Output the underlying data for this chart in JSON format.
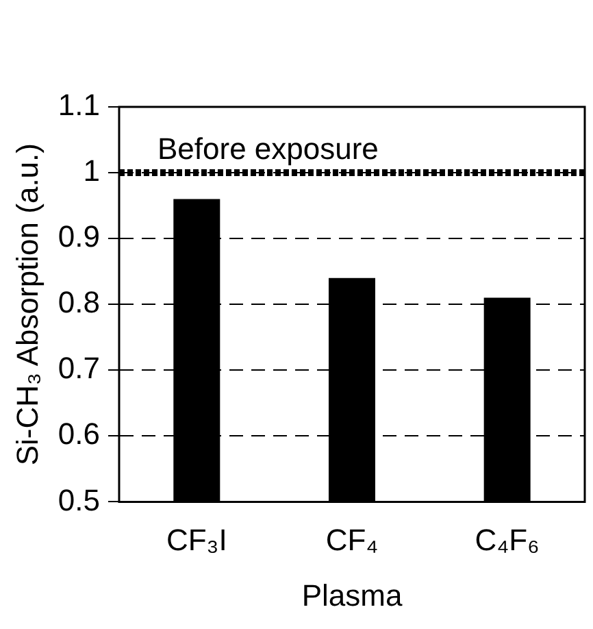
{
  "chart_data": {
    "type": "bar",
    "xlabel": "Plasma",
    "ylabel": "Si-CH₃ Absorption (a.u.)",
    "categories": [
      "CF₃I",
      "CF₄",
      "C₄F₆"
    ],
    "values": [
      0.96,
      0.84,
      0.81
    ],
    "color": "#000000",
    "ylim": [
      0.5,
      1.1
    ],
    "yticks": [
      0.5,
      0.6,
      0.7,
      0.8,
      0.9,
      1,
      1.1
    ],
    "grid": "y",
    "legend": false,
    "ref_lines": [
      {
        "axis": "y",
        "value": 1,
        "label": "Before exposure",
        "color": "#000000",
        "line_style": "dotted"
      }
    ]
  }
}
